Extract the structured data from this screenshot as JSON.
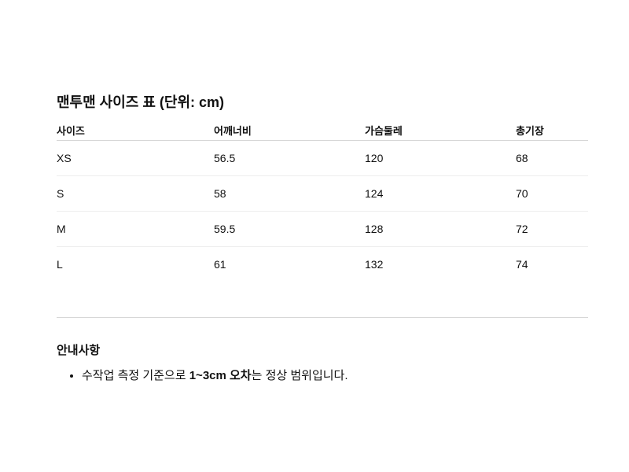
{
  "title": "맨투맨 사이즈 표 (단위: cm)",
  "table": {
    "headers": [
      "사이즈",
      "어깨너비",
      "가슴둘레",
      "총기장"
    ],
    "rows": [
      [
        "XS",
        "56.5",
        "120",
        "68"
      ],
      [
        "S",
        "58",
        "124",
        "70"
      ],
      [
        "M",
        "59.5",
        "128",
        "72"
      ],
      [
        "L",
        "61",
        "132",
        "74"
      ]
    ]
  },
  "notes": {
    "heading": "안내사항",
    "items": [
      {
        "before": "수작업 측정 기준으로 ",
        "bold": "1~3cm 오차",
        "after": "는 정상 범위입니다."
      }
    ]
  }
}
